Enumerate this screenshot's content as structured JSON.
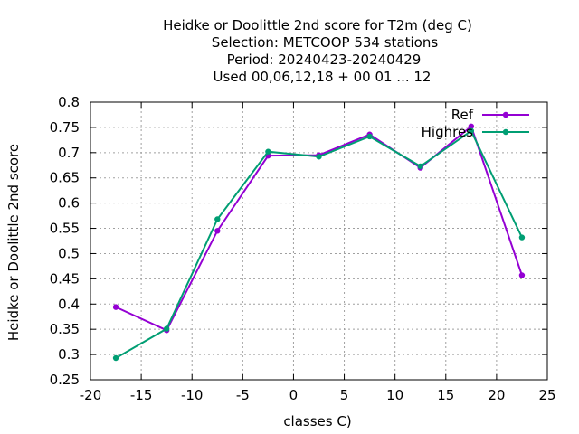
{
  "chart_data": {
    "type": "line",
    "title_lines": [
      "Heidke or Doolittle 2nd score  for T2m (deg C)",
      "Selection: METCOOP    534 stations",
      "Period: 20240423-20240429",
      "Used  00,06,12,18 + 00 01 ... 12"
    ],
    "xlabel": "classes C)",
    "ylabel": "Heidke or Doolittle 2nd score",
    "xlim": [
      -20,
      25
    ],
    "ylim": [
      0.25,
      0.8
    ],
    "xticks": [
      -20,
      -15,
      -10,
      -5,
      0,
      5,
      10,
      15,
      20,
      25
    ],
    "yticks": [
      0.25,
      0.3,
      0.35,
      0.4,
      0.45,
      0.5,
      0.55,
      0.6,
      0.65,
      0.7,
      0.75,
      0.8
    ],
    "xtick_labels": [
      "-20",
      "-15",
      "-10",
      "-5",
      "0",
      "5",
      "10",
      "15",
      "20",
      "25"
    ],
    "ytick_labels": [
      "0.25",
      "0.3",
      "0.35",
      "0.4",
      "0.45",
      "0.5",
      "0.55",
      "0.6",
      "0.65",
      "0.7",
      "0.75",
      "0.8"
    ],
    "grid": true,
    "legend_position": "top-right",
    "x": [
      -17.5,
      -12.5,
      -7.5,
      -2.5,
      2.5,
      7.5,
      12.5,
      17.5,
      22.5
    ],
    "series": [
      {
        "name": "Ref",
        "color": "#9400d3",
        "values": [
          0.394,
          0.348,
          0.545,
          0.694,
          0.695,
          0.736,
          0.67,
          0.752,
          0.457
        ]
      },
      {
        "name": "Highres",
        "color": "#009e73",
        "values": [
          0.293,
          0.351,
          0.568,
          0.702,
          0.692,
          0.732,
          0.673,
          0.743,
          0.532
        ]
      }
    ]
  }
}
